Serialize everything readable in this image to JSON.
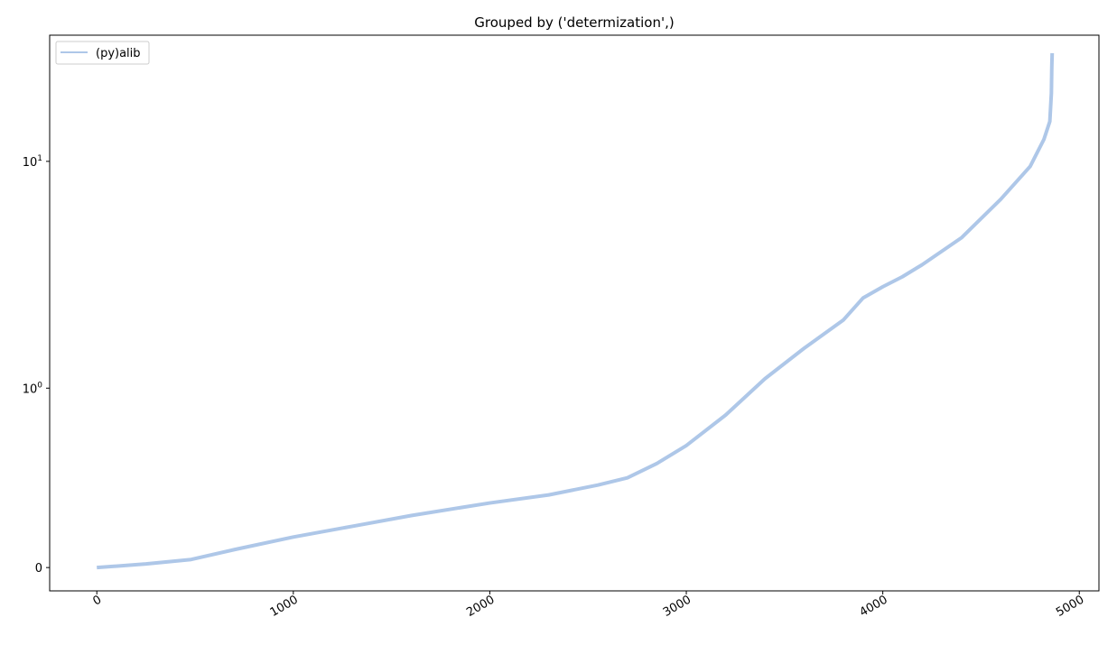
{
  "chart_data": {
    "type": "line",
    "title": "Grouped by ('determization',)",
    "xlabel": "",
    "ylabel": "",
    "y_scale": "symlog",
    "xlim": [
      -240,
      5100
    ],
    "ylim": [
      -0.13,
      36
    ],
    "grid": false,
    "legend_position": "top-left",
    "x_ticks": [
      {
        "value": 0,
        "label": "0"
      },
      {
        "value": 1000,
        "label": "1000"
      },
      {
        "value": 2000,
        "label": "2000"
      },
      {
        "value": 3000,
        "label": "3000"
      },
      {
        "value": 4000,
        "label": "4000"
      },
      {
        "value": 5000,
        "label": "5000"
      }
    ],
    "y_ticks": [
      {
        "value": 0,
        "base": "",
        "exp": "",
        "label": "0"
      },
      {
        "value": 1,
        "base": "10",
        "exp": "0",
        "label": "10^0"
      },
      {
        "value": 10,
        "base": "10",
        "exp": "1",
        "label": "10^1"
      }
    ],
    "series": [
      {
        "name": "(py)alib",
        "color": "#aec7e8",
        "x": [
          0,
          250,
          480,
          700,
          1000,
          1300,
          1600,
          2000,
          2300,
          2550,
          2700,
          2850,
          3000,
          3200,
          3400,
          3600,
          3800,
          3900,
          4000,
          4100,
          4200,
          4400,
          4600,
          4750,
          4820,
          4850,
          4858,
          4860,
          4862
        ],
        "y": [
          0,
          0.02,
          0.045,
          0.1,
          0.17,
          0.23,
          0.29,
          0.36,
          0.405,
          0.46,
          0.5,
          0.58,
          0.68,
          0.85,
          1.1,
          1.5,
          2.0,
          2.5,
          2.8,
          3.1,
          3.5,
          4.6,
          6.8,
          9.5,
          12.5,
          15,
          20,
          26,
          30
        ]
      }
    ]
  }
}
